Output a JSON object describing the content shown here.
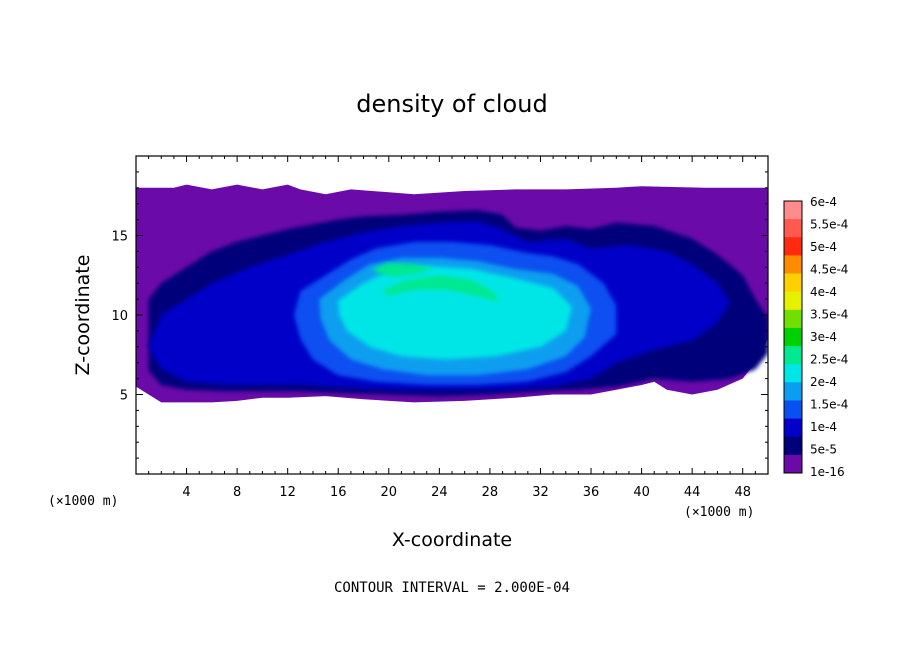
{
  "chart_data": {
    "type": "heatmap",
    "title": "density of cloud",
    "xlabel": "X-coordinate",
    "ylabel": "Z-coordinate",
    "x_unit": "(×1000 m)",
    "x_ticks": [
      4,
      8,
      12,
      16,
      20,
      24,
      28,
      32,
      36,
      40,
      44,
      48
    ],
    "y_ticks": [
      5,
      10,
      15
    ],
    "xlim": [
      0,
      50
    ],
    "ylim": [
      0,
      20
    ],
    "footer": "CONTOUR INTERVAL = 2.000E-04",
    "contour_interval": 0.0002,
    "colorbar": {
      "labels": [
        "6e-4",
        "5.5e-4",
        "5e-4",
        "4.5e-4",
        "4e-4",
        "3.5e-4",
        "3e-4",
        "2.5e-4",
        "2e-4",
        "1.5e-4",
        "1e-4",
        "5e-5",
        "1e-16"
      ],
      "colors": [
        "#ff8c8c",
        "#ff5a50",
        "#ff2a10",
        "#ff8c00",
        "#ffd000",
        "#e6f000",
        "#70e000",
        "#00d000",
        "#00e890",
        "#00e6e6",
        "#0a9ef0",
        "#0a50f0",
        "#0000c8",
        "#00007a",
        "#6a0aa8"
      ]
    },
    "regions": [
      {
        "level": 1e-16,
        "color": "#6a0aa8",
        "points": [
          [
            0,
            18.0
          ],
          [
            3,
            18.0
          ],
          [
            4,
            18.2
          ],
          [
            6,
            17.9
          ],
          [
            8,
            18.2
          ],
          [
            10,
            17.9
          ],
          [
            12,
            18.2
          ],
          [
            13,
            17.9
          ],
          [
            15,
            17.6
          ],
          [
            17,
            17.9
          ],
          [
            22,
            17.6
          ],
          [
            26,
            17.8
          ],
          [
            30,
            17.9
          ],
          [
            34,
            17.9
          ],
          [
            38,
            18.0
          ],
          [
            40,
            18.1
          ],
          [
            45,
            18.0
          ],
          [
            50,
            18.0
          ],
          [
            50,
            8.5
          ],
          [
            49,
            7.0
          ],
          [
            48,
            6.0
          ],
          [
            46,
            5.3
          ],
          [
            44,
            5.0
          ],
          [
            42,
            5.3
          ],
          [
            41,
            5.8
          ],
          [
            40,
            5.6
          ],
          [
            38,
            5.3
          ],
          [
            36,
            5.0
          ],
          [
            33,
            5.0
          ],
          [
            30,
            4.8
          ],
          [
            26,
            4.6
          ],
          [
            22,
            4.5
          ],
          [
            18,
            4.7
          ],
          [
            15,
            4.9
          ],
          [
            12,
            4.8
          ],
          [
            10,
            4.8
          ],
          [
            8,
            4.6
          ],
          [
            6,
            4.5
          ],
          [
            4,
            4.5
          ],
          [
            2,
            4.5
          ],
          [
            1,
            5.0
          ],
          [
            0,
            5.5
          ]
        ]
      },
      {
        "level": 5e-05,
        "color": "#00007a",
        "points": [
          [
            1,
            11.0
          ],
          [
            2,
            12.0
          ],
          [
            4,
            13.0
          ],
          [
            6,
            14.0
          ],
          [
            8,
            14.6
          ],
          [
            10,
            15.0
          ],
          [
            12,
            15.4
          ],
          [
            14,
            15.7
          ],
          [
            16,
            16.0
          ],
          [
            18,
            16.2
          ],
          [
            21,
            16.3
          ],
          [
            24,
            16.5
          ],
          [
            27,
            16.6
          ],
          [
            29,
            16.3
          ],
          [
            30,
            15.5
          ],
          [
            32,
            15.3
          ],
          [
            34,
            15.6
          ],
          [
            36,
            15.4
          ],
          [
            38,
            15.8
          ],
          [
            41,
            15.6
          ],
          [
            44,
            14.8
          ],
          [
            46,
            13.8
          ],
          [
            48,
            12.5
          ],
          [
            49,
            11.0
          ],
          [
            50,
            9.8
          ],
          [
            50,
            7.6
          ],
          [
            49,
            6.6
          ],
          [
            47,
            6.0
          ],
          [
            44,
            5.8
          ],
          [
            41,
            6.0
          ],
          [
            38,
            5.5
          ],
          [
            35,
            5.3
          ],
          [
            32,
            5.2
          ],
          [
            28,
            5.0
          ],
          [
            24,
            4.9
          ],
          [
            20,
            5.0
          ],
          [
            16,
            5.1
          ],
          [
            13,
            5.2
          ],
          [
            10,
            5.2
          ],
          [
            7,
            5.2
          ],
          [
            4,
            5.3
          ],
          [
            2,
            5.6
          ],
          [
            1,
            6.5
          ]
        ]
      },
      {
        "level": 0.0001,
        "color": "#0000c8",
        "points": [
          [
            2,
            10.0
          ],
          [
            4,
            11.0
          ],
          [
            6,
            12.0
          ],
          [
            9,
            13.0
          ],
          [
            12,
            13.8
          ],
          [
            15,
            14.6
          ],
          [
            18,
            15.2
          ],
          [
            21,
            15.6
          ],
          [
            24,
            15.8
          ],
          [
            27,
            15.9
          ],
          [
            29,
            15.4
          ],
          [
            31,
            14.6
          ],
          [
            34,
            14.8
          ],
          [
            36,
            14.2
          ],
          [
            39,
            14.4
          ],
          [
            42,
            14.0
          ],
          [
            44,
            13.2
          ],
          [
            46,
            12.0
          ],
          [
            47,
            10.8
          ],
          [
            46,
            9.5
          ],
          [
            44,
            8.4
          ],
          [
            41,
            7.8
          ],
          [
            38,
            7.0
          ],
          [
            36,
            6.0
          ],
          [
            33,
            5.5
          ],
          [
            29,
            5.3
          ],
          [
            25,
            5.3
          ],
          [
            21,
            5.3
          ],
          [
            17,
            5.4
          ],
          [
            13,
            5.6
          ],
          [
            10,
            5.6
          ],
          [
            7,
            5.6
          ],
          [
            4,
            5.8
          ],
          [
            2,
            6.6
          ],
          [
            1,
            8.0
          ]
        ]
      },
      {
        "level": 0.00015,
        "color": "#0a50f0",
        "points": [
          [
            13,
            11.5
          ],
          [
            15,
            12.5
          ],
          [
            17,
            13.5
          ],
          [
            19,
            14.2
          ],
          [
            22,
            14.6
          ],
          [
            25,
            14.6
          ],
          [
            28,
            14.4
          ],
          [
            31,
            13.9
          ],
          [
            33,
            13.7
          ],
          [
            35,
            13.2
          ],
          [
            37,
            12.0
          ],
          [
            38,
            10.6
          ],
          [
            38,
            8.8
          ],
          [
            36,
            7.4
          ],
          [
            34,
            6.4
          ],
          [
            31,
            5.8
          ],
          [
            27,
            5.6
          ],
          [
            23,
            5.6
          ],
          [
            19,
            5.8
          ],
          [
            16,
            6.2
          ],
          [
            14,
            7.2
          ],
          [
            13,
            8.5
          ],
          [
            12.5,
            10.0
          ]
        ]
      },
      {
        "level": 0.0002,
        "color": "#0a9ef0",
        "points": [
          [
            14.5,
            11.0
          ],
          [
            16.5,
            12.2
          ],
          [
            18.5,
            13.2
          ],
          [
            21,
            13.6
          ],
          [
            24,
            13.6
          ],
          [
            27,
            13.4
          ],
          [
            30,
            12.9
          ],
          [
            33,
            12.6
          ],
          [
            35,
            11.8
          ],
          [
            36,
            10.4
          ],
          [
            35.5,
            8.6
          ],
          [
            34,
            7.4
          ],
          [
            31,
            6.6
          ],
          [
            27,
            6.2
          ],
          [
            23,
            6.2
          ],
          [
            19.5,
            6.6
          ],
          [
            17,
            7.2
          ],
          [
            15.3,
            8.4
          ],
          [
            14.6,
            9.8
          ]
        ]
      },
      {
        "level": 0.00025,
        "color": "#00e6e6",
        "points": [
          [
            16,
            10.9
          ],
          [
            17.8,
            11.9
          ],
          [
            20,
            12.8
          ],
          [
            23,
            13.1
          ],
          [
            26.5,
            12.9
          ],
          [
            30,
            12.3
          ],
          [
            33,
            11.7
          ],
          [
            34.5,
            10.5
          ],
          [
            34,
            9.0
          ],
          [
            32,
            8.0
          ],
          [
            28.5,
            7.4
          ],
          [
            24.5,
            7.2
          ],
          [
            21,
            7.4
          ],
          [
            18.5,
            8.0
          ],
          [
            16.7,
            9.0
          ],
          [
            16.1,
            10.0
          ]
        ]
      },
      {
        "level": 0.0003,
        "color": "#00e890",
        "points": [
          [
            19.5,
            11.6
          ],
          [
            21.5,
            12.2
          ],
          [
            24,
            12.5
          ],
          [
            26.5,
            12.2
          ],
          [
            28.2,
            11.5
          ],
          [
            28.8,
            10.8
          ],
          [
            27,
            11.2
          ],
          [
            24.5,
            11.6
          ],
          [
            22,
            11.6
          ],
          [
            20,
            11.2
          ]
        ]
      },
      {
        "level": 0.0003,
        "color": "#00e890",
        "points": [
          [
            18.7,
            12.9
          ],
          [
            20,
            13.3
          ],
          [
            22,
            13.2
          ],
          [
            23.6,
            12.9
          ],
          [
            22.2,
            12.6
          ],
          [
            20.4,
            12.4
          ],
          [
            19.2,
            12.6
          ]
        ]
      }
    ]
  }
}
